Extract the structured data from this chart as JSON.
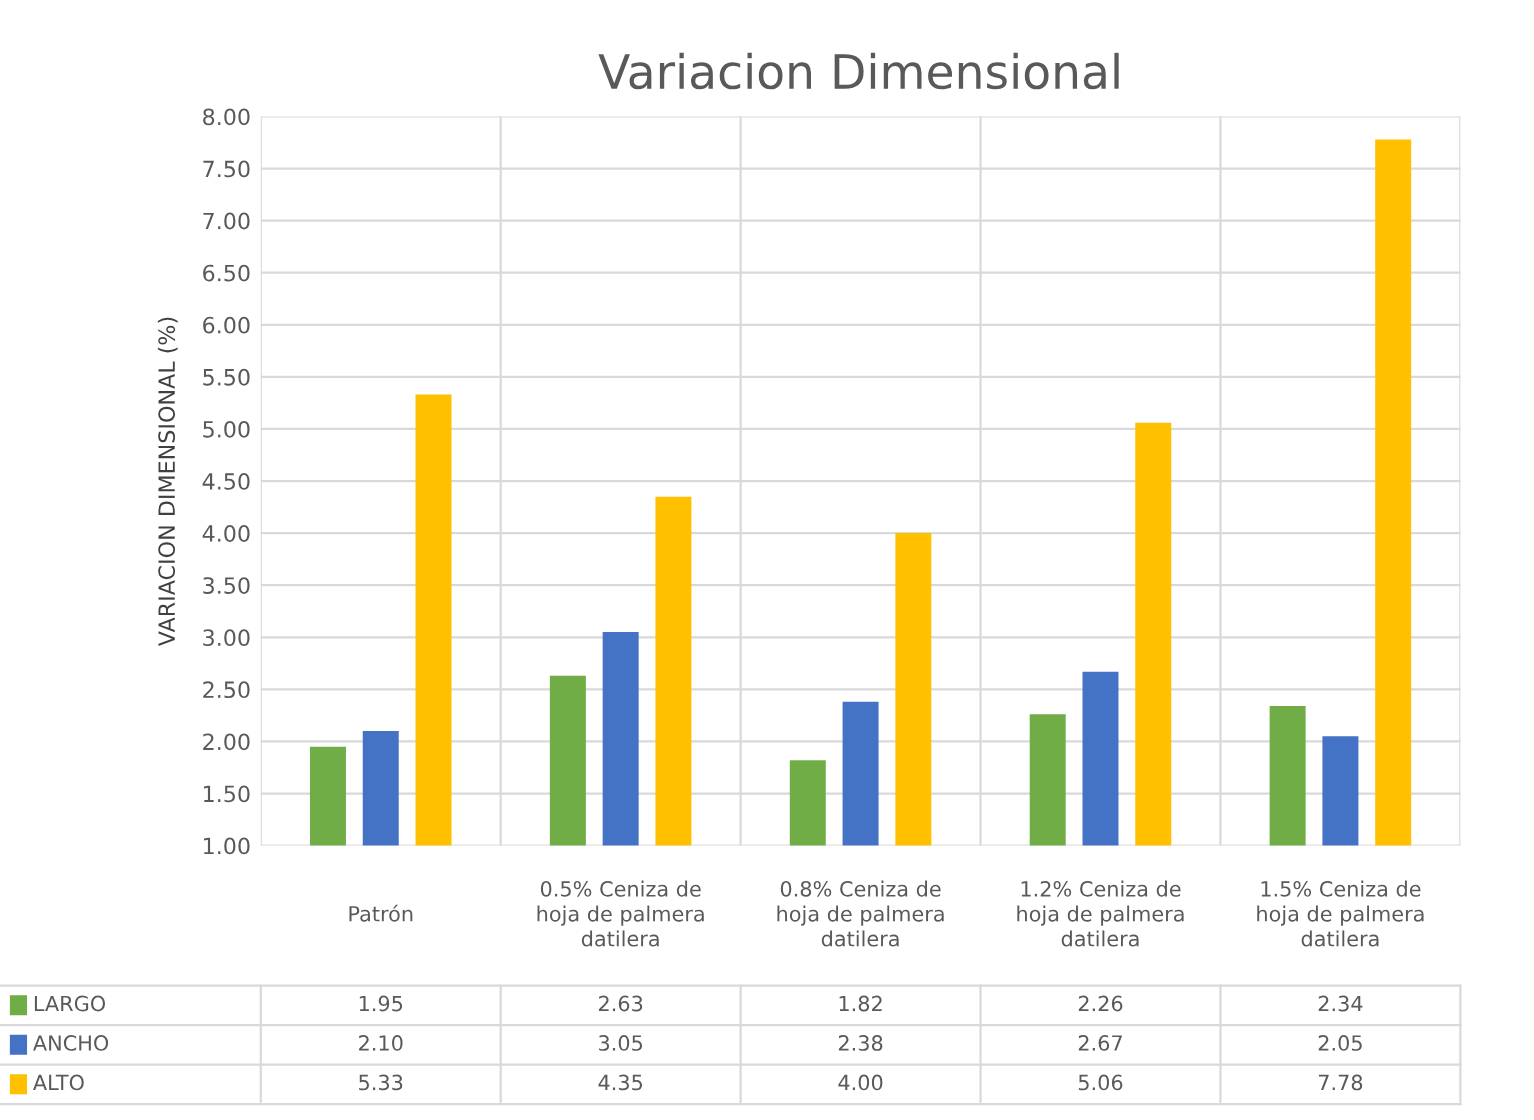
{
  "chart_data": {
    "type": "bar",
    "title": "Variacion Dimensional",
    "ylabel": "VARIACION DIMENSIONAL (%)",
    "categories": [
      "Patrón",
      "0.5% Ceniza de hoja de palmera datilera",
      "0.8% Ceniza de hoja de palmera datilera",
      "1.2% Ceniza de hoja de palmera datilera",
      "1.5% Ceniza de hoja de palmera datilera"
    ],
    "series": [
      {
        "name": "LARGO",
        "color": "#70ad47",
        "values": [
          1.95,
          2.63,
          1.82,
          2.26,
          2.34
        ],
        "value_labels": [
          "1.95",
          "2.63",
          "1.82",
          "2.26",
          "2.34"
        ]
      },
      {
        "name": "ANCHO",
        "color": "#4472c4",
        "values": [
          2.1,
          3.05,
          2.38,
          2.67,
          2.05
        ],
        "value_labels": [
          "2.10",
          "3.05",
          "2.38",
          "2.67",
          "2.05"
        ]
      },
      {
        "name": "ALTO",
        "color": "#ffc000",
        "values": [
          5.33,
          4.35,
          4.0,
          5.06,
          7.78
        ],
        "value_labels": [
          "5.33",
          "4.35",
          "4.00",
          "5.06",
          "7.78"
        ]
      }
    ],
    "ylim": [
      1,
      8
    ],
    "yticks": [
      {
        "value": 1,
        "label": "1.00"
      },
      {
        "value": 1.5,
        "label": "1.50"
      },
      {
        "value": 2,
        "label": "2.00"
      },
      {
        "value": 2.5,
        "label": "2.50"
      },
      {
        "value": 3,
        "label": "3.00"
      },
      {
        "value": 3.5,
        "label": "3.50"
      },
      {
        "value": 4,
        "label": "4.00"
      },
      {
        "value": 4.5,
        "label": "4.50"
      },
      {
        "value": 5,
        "label": "5.00"
      },
      {
        "value": 5.5,
        "label": "5.50"
      },
      {
        "value": 6,
        "label": "6.00"
      },
      {
        "value": 6.5,
        "label": "6.50"
      },
      {
        "value": 7,
        "label": "7.00"
      },
      {
        "value": 7.5,
        "label": "7.50"
      },
      {
        "value": 8,
        "label": "8.00"
      }
    ],
    "grid": true,
    "legend": "bottom left"
  }
}
